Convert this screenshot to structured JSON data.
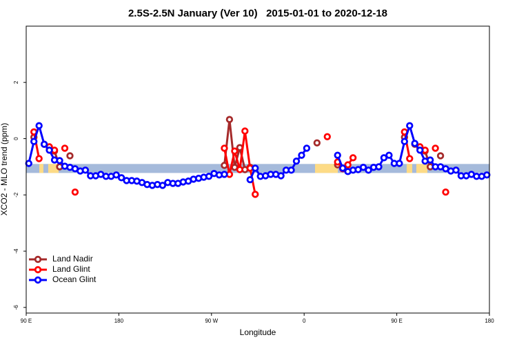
{
  "chart_data": {
    "type": "line",
    "title": "2.5S-2.5N January (Ver 10)   2015-01-01 to 2020-12-18",
    "x_label": "Longitude",
    "y_label": "XCO2 - MLO trend (ppm)",
    "xlim": [
      90,
      540
    ],
    "ylim": [
      -6.2,
      4
    ],
    "xticks": [
      {
        "value": 90,
        "label": "90 E"
      },
      180,
      {
        "value": 270,
        "label": "90 W"
      },
      {
        "value": 360,
        "label": "0"
      },
      {
        "value": 450,
        "label": "90 E"
      },
      {
        "value": 540,
        "label": "180"
      }
    ],
    "yticks": [
      -6,
      -4,
      -2,
      0,
      2
    ],
    "legend": "bottom-left",
    "band": {
      "ylim": [
        -1.22,
        -0.9
      ],
      "color": "#a5badb",
      "land_color": "#fddb86",
      "land_ranges": [
        [
          102.7,
          106.7
        ],
        [
          111.4,
          121.5
        ],
        [
          370.6,
          392.7
        ],
        [
          459.6,
          465
        ],
        [
          469,
          479.7
        ]
      ]
    },
    "x": [
      92.5,
      97.5,
      102.5,
      107.5,
      112.5,
      117.5,
      122.5,
      127.5,
      132.5,
      137.5,
      142.5,
      147.5,
      152.5,
      157.5,
      162.5,
      167.5,
      172.5,
      177.5,
      182.5,
      187.5,
      192.5,
      197.5,
      202.5,
      207.5,
      212.5,
      217.5,
      222.5,
      227.5,
      232.5,
      237.5,
      242.5,
      247.5,
      252.5,
      257.5,
      262.5,
      267.5,
      272.5,
      277.5,
      282.5,
      287.5,
      292.5,
      297.5,
      302.5,
      307.5,
      312.5,
      317.5,
      322.5,
      327.5,
      332.5,
      337.5,
      342.5,
      347.5,
      352.5,
      357.5,
      362.5,
      367.5,
      372.5,
      377.5,
      382.5,
      387.5,
      392.5,
      397.5,
      402.5,
      407.5,
      412.5,
      417.5,
      422.5,
      427.5,
      432.5,
      437.5,
      442.5,
      447.5,
      452.5,
      457.5,
      462.5,
      467.5,
      472.5,
      477.5,
      482.5,
      487.5,
      492.5,
      497.5,
      502.5,
      507.5,
      512.5,
      517.5,
      522.5,
      527.5,
      532.5,
      537.5
    ],
    "series": [
      {
        "name": "Land Nadir",
        "color": "#a52a2a",
        "values": [
          null,
          0.05,
          null,
          -0.2,
          -0.34,
          -0.44,
          -1.0,
          null,
          -0.61,
          null,
          null,
          null,
          null,
          null,
          null,
          null,
          null,
          null,
          null,
          null,
          null,
          null,
          null,
          null,
          null,
          null,
          null,
          null,
          null,
          null,
          null,
          null,
          null,
          null,
          null,
          null,
          null,
          null,
          -0.95,
          0.68,
          -1.02,
          -0.32,
          -1.1,
          -1.02,
          null,
          null,
          null,
          null,
          null,
          null,
          null,
          null,
          null,
          null,
          null,
          null,
          -0.15,
          null,
          null,
          null,
          -0.93,
          null,
          null,
          null,
          null,
          null,
          null,
          null,
          null,
          null,
          null,
          null,
          null,
          0.05,
          null,
          -0.2,
          -0.34,
          -0.44,
          -1.0,
          null,
          -0.61,
          null,
          null,
          null,
          null,
          null,
          null,
          null,
          null,
          null
        ]
      },
      {
        "name": "Land Glint",
        "color": "#ff0000",
        "values": [
          null,
          0.24,
          -0.71,
          null,
          -0.29,
          -0.41,
          null,
          -0.34,
          null,
          -1.9,
          null,
          null,
          null,
          null,
          null,
          null,
          null,
          null,
          null,
          null,
          null,
          null,
          null,
          null,
          null,
          null,
          null,
          null,
          null,
          null,
          null,
          null,
          null,
          null,
          null,
          null,
          null,
          null,
          -0.34,
          -1.27,
          -0.44,
          -1.1,
          0.27,
          -1.05,
          -1.98,
          null,
          null,
          null,
          null,
          null,
          null,
          null,
          null,
          null,
          null,
          null,
          null,
          null,
          0.07,
          null,
          -0.83,
          -1.07,
          -0.93,
          -0.68,
          null,
          null,
          null,
          null,
          null,
          null,
          null,
          null,
          null,
          0.24,
          -0.71,
          null,
          -0.29,
          -0.41,
          null,
          -0.34,
          null,
          -1.9,
          null,
          null,
          null,
          null,
          null,
          null,
          null,
          null
        ]
      },
      {
        "name": "Ocean Glint",
        "color": "#0000ff",
        "values": [
          -0.88,
          -0.1,
          0.46,
          -0.2,
          -0.41,
          -0.76,
          -0.78,
          -0.98,
          -1.02,
          -1.07,
          -1.15,
          -1.12,
          -1.32,
          -1.32,
          -1.27,
          -1.34,
          -1.34,
          -1.29,
          -1.39,
          -1.49,
          -1.49,
          -1.51,
          -1.56,
          -1.63,
          -1.66,
          -1.63,
          -1.66,
          -1.56,
          -1.59,
          -1.59,
          -1.54,
          -1.51,
          -1.44,
          -1.41,
          -1.37,
          -1.34,
          -1.24,
          -1.29,
          -1.27,
          null,
          null,
          null,
          null,
          -1.46,
          -1.05,
          -1.34,
          -1.32,
          -1.27,
          -1.27,
          -1.32,
          -1.12,
          -1.12,
          -0.8,
          -0.59,
          -0.34,
          null,
          null,
          null,
          null,
          null,
          -0.59,
          -1.05,
          -1.17,
          -1.12,
          -1.1,
          -1.02,
          -1.12,
          -1.02,
          -1.0,
          -0.68,
          -0.59,
          -0.88,
          -0.88,
          -0.1,
          0.46,
          -0.17,
          -0.41,
          -0.8,
          -0.76,
          -1.0,
          -1.0,
          -1.07,
          -1.15,
          -1.12,
          -1.32,
          -1.32,
          -1.27,
          -1.34,
          -1.34,
          -1.29
        ]
      }
    ]
  }
}
